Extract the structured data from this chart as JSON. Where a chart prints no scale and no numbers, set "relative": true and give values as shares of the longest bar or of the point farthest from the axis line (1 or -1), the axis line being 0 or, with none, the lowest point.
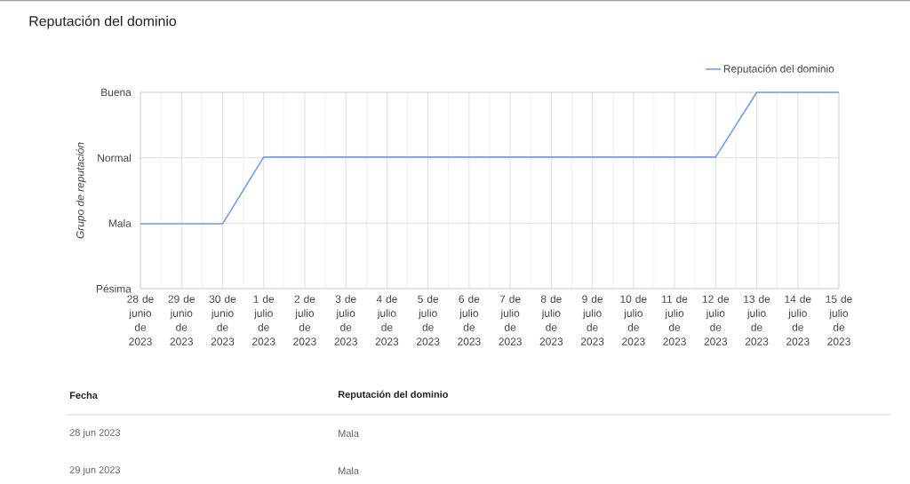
{
  "chart_data": {
    "type": "line",
    "title": "Reputación del dominio",
    "ylabel": "Grupo de reputación",
    "categories": [
      "28 de junio de 2023",
      "29 de junio de 2023",
      "30 de junio de 2023",
      "1 de julio de 2023",
      "2 de julio de 2023",
      "3 de julio de 2023",
      "4 de julio de 2023",
      "5 de julio de 2023",
      "6 de julio de 2023",
      "7 de julio de 2023",
      "8 de julio de 2023",
      "9 de julio de 2023",
      "10 de julio de 2023",
      "11 de julio de 2023",
      "12 de julio de 2023",
      "13 de julio de 2023",
      "14 de julio de 2023",
      "15 de julio de 2023"
    ],
    "y_categories": [
      "Buena",
      "Normal",
      "Mala",
      "Pésima"
    ],
    "relative": true,
    "series": [
      {
        "name": "Reputación del dominio",
        "color": "#6f9ff0",
        "values": [
          0.33,
          0.33,
          0.33,
          0.67,
          0.67,
          0.67,
          0.67,
          0.67,
          0.67,
          0.67,
          0.67,
          0.67,
          0.67,
          0.67,
          0.67,
          1,
          1,
          1
        ]
      }
    ],
    "grid": true,
    "legend": "top right",
    "line_style": "solid",
    "annotations": [
      "Fecha",
      "Reputación del dominio",
      "28 jun 2023",
      "Mala",
      "29 jun 2023",
      "Mala"
    ]
  }
}
